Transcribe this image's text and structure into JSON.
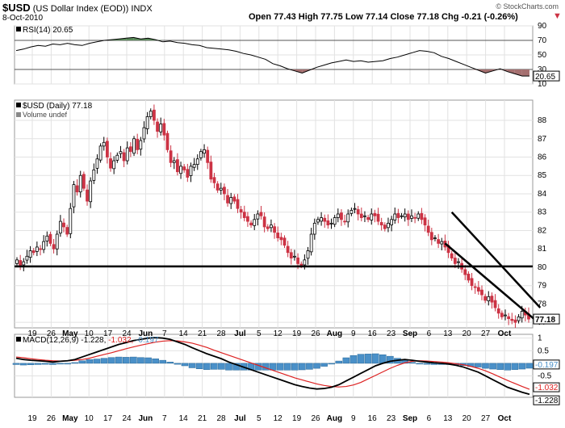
{
  "header": {
    "symbol": "$USD",
    "name": "(US Dollar Index (EOD))",
    "exchange": "INDX",
    "date": "8-Oct-2010",
    "watermark": "© StockCharts.com",
    "ohlc_text": "Open 77.43  High 77.75  Low 77.14  Close 77.18  Chg -0.21 (-0.26%)"
  },
  "colors": {
    "up": "#ffffff",
    "down": "#cc3344",
    "rsi_up": "#5a8a5a",
    "rsi_down": "#a57070",
    "macd": "#000000",
    "signal": "#dd2222",
    "hist": "#4a90c8",
    "trendline": "#000000"
  },
  "chart_data": [
    {
      "type": "line",
      "panel": "rsi",
      "legend": "RSI(14) 20.65",
      "ylim": [
        10,
        90
      ],
      "yticks": [
        10,
        30,
        50,
        70,
        90
      ],
      "ref_lines": [
        30,
        70
      ],
      "last_label": "20.65",
      "x_labels": [
        "19",
        "26",
        "May",
        "10",
        "17",
        "24",
        "Jun",
        "7",
        "14",
        "21",
        "28",
        "Jul",
        "5",
        "12",
        "19",
        "26",
        "Aug",
        "9",
        "16",
        "23",
        "Sep",
        "6",
        "13",
        "20",
        "27",
        "Oct"
      ],
      "values": [
        56,
        58,
        61,
        63,
        62,
        65,
        64,
        66,
        64,
        63,
        66,
        68,
        70,
        71,
        72,
        73,
        74,
        72,
        73,
        71,
        68,
        69,
        67,
        66,
        64,
        63,
        60,
        59,
        58,
        57,
        55,
        52,
        50,
        47,
        44,
        38,
        35,
        31,
        28,
        25,
        29,
        33,
        36,
        39,
        41,
        43,
        41,
        42,
        40,
        41,
        42,
        45,
        47,
        50,
        53,
        56,
        55,
        53,
        48,
        45,
        41,
        37,
        33,
        29,
        25,
        28,
        31,
        27,
        24,
        21,
        21
      ]
    },
    {
      "type": "candlestick",
      "panel": "price",
      "legend": "$USD (Daily) 77.18",
      "volume_note": "Volume undef",
      "ylim": [
        76.7,
        89.1
      ],
      "yticks": [
        77,
        78,
        79,
        80,
        81,
        82,
        83,
        84,
        85,
        86,
        87,
        88
      ],
      "last_price_label": "77.18",
      "x_labels": [
        "19",
        "26",
        "May",
        "10",
        "17",
        "24",
        "Jun",
        "7",
        "14",
        "21",
        "28",
        "Jul",
        "5",
        "12",
        "19",
        "26",
        "Aug",
        "9",
        "16",
        "23",
        "Sep",
        "6",
        "13",
        "20",
        "27",
        "Oct"
      ],
      "horizontal_line": 80.05,
      "trend_channel": {
        "upper": [
          [
            130,
            83.0
          ],
          [
            155,
            77.8
          ]
        ],
        "lower": [
          [
            128,
            81.3
          ],
          [
            155,
            76.9
          ]
        ]
      },
      "closes": [
        80.4,
        80.1,
        80.3,
        80.6,
        80.9,
        80.8,
        81.1,
        81.0,
        81.4,
        81.7,
        81.3,
        81.0,
        81.8,
        82.5,
        82.2,
        81.8,
        83.2,
        84.5,
        84.1,
        85.0,
        84.3,
        83.6,
        84.7,
        85.3,
        85.9,
        86.6,
        86.8,
        86.0,
        85.4,
        85.8,
        86.1,
        86.3,
        85.8,
        86.5,
        86.3,
        87.0,
        86.4,
        86.9,
        87.6,
        88.2,
        88.5,
        88.0,
        87.4,
        87.8,
        87.2,
        86.4,
        85.7,
        85.8,
        85.2,
        85.5,
        85.3,
        84.9,
        85.5,
        85.6,
        85.9,
        86.3,
        86.4,
        85.7,
        84.8,
        84.6,
        84.2,
        84.3,
        84.0,
        83.5,
        83.8,
        83.6,
        83.2,
        83.0,
        82.7,
        82.5,
        82.3,
        82.6,
        82.9,
        82.8,
        82.2,
        82.1,
        82.3,
        81.9,
        81.6,
        81.5,
        81.2,
        80.8,
        80.5,
        80.6,
        80.2,
        80.1,
        80.4,
        80.9,
        81.8,
        82.4,
        82.6,
        82.7,
        82.5,
        82.3,
        82.4,
        82.7,
        82.9,
        82.6,
        82.5,
        82.9,
        83.1,
        83.2,
        82.9,
        82.7,
        82.8,
        82.6,
        82.9,
        82.8,
        82.5,
        82.3,
        82.1,
        82.4,
        82.6,
        82.9,
        82.7,
        82.8,
        82.9,
        82.6,
        82.8,
        82.7,
        82.9,
        82.6,
        82.3,
        81.9,
        81.5,
        81.6,
        81.3,
        81.4,
        81.1,
        80.8,
        80.5,
        80.2,
        80.3,
        79.9,
        79.6,
        79.3,
        79.0,
        78.9,
        78.7,
        78.5,
        78.2,
        78.4,
        78.1,
        77.8,
        77.5,
        77.3,
        77.4,
        77.2,
        77.1,
        77.0,
        77.3,
        77.6,
        77.4,
        77.18
      ]
    },
    {
      "type": "line",
      "panel": "macd",
      "legend_prefix": "MACD(12,26,9)",
      "legend_macd": "-1.228",
      "legend_signal": "-1.032",
      "legend_hist": "-0.197",
      "ylim": [
        -1.35,
        1.15
      ],
      "yticks": [
        1.0,
        0.5,
        0.0,
        -0.5
      ],
      "last_labels": [
        "-1.032",
        "-1.228",
        "-0.197"
      ],
      "x_labels": [
        "19",
        "26",
        "May",
        "10",
        "17",
        "24",
        "Jun",
        "7",
        "14",
        "21",
        "28",
        "Jul",
        "5",
        "12",
        "19",
        "26",
        "Aug",
        "9",
        "16",
        "23",
        "Sep",
        "6",
        "13",
        "20",
        "27",
        "Oct"
      ],
      "macd": [
        0.2,
        0.15,
        0.12,
        0.1,
        0.08,
        0.05,
        0.08,
        0.1,
        0.15,
        0.25,
        0.35,
        0.45,
        0.55,
        0.65,
        0.75,
        0.82,
        0.9,
        0.95,
        1.0,
        1.02,
        1.0,
        0.95,
        0.85,
        0.75,
        0.62,
        0.5,
        0.38,
        0.28,
        0.18,
        0.05,
        -0.05,
        -0.15,
        -0.25,
        -0.35,
        -0.45,
        -0.55,
        -0.65,
        -0.75,
        -0.85,
        -0.92,
        -0.98,
        -1.02,
        -1.0,
        -0.95,
        -0.85,
        -0.7,
        -0.55,
        -0.4,
        -0.25,
        -0.1,
        0.0,
        0.08,
        0.12,
        0.15,
        0.12,
        0.08,
        0.05,
        0.02,
        0.0,
        -0.03,
        -0.08,
        -0.15,
        -0.25,
        -0.35,
        -0.5,
        -0.65,
        -0.8,
        -0.95,
        -1.05,
        -1.15,
        -1.228
      ],
      "signal": [
        0.25,
        0.22,
        0.18,
        0.15,
        0.12,
        0.1,
        0.09,
        0.1,
        0.12,
        0.15,
        0.2,
        0.28,
        0.35,
        0.42,
        0.5,
        0.58,
        0.65,
        0.72,
        0.78,
        0.84,
        0.88,
        0.9,
        0.89,
        0.85,
        0.8,
        0.72,
        0.63,
        0.52,
        0.42,
        0.32,
        0.22,
        0.12,
        0.02,
        -0.08,
        -0.18,
        -0.28,
        -0.38,
        -0.48,
        -0.58,
        -0.66,
        -0.74,
        -0.82,
        -0.88,
        -0.92,
        -0.94,
        -0.92,
        -0.86,
        -0.76,
        -0.62,
        -0.48,
        -0.34,
        -0.2,
        -0.08,
        0.02,
        0.08,
        0.1,
        0.09,
        0.07,
        0.05,
        0.02,
        -0.02,
        -0.06,
        -0.12,
        -0.2,
        -0.3,
        -0.42,
        -0.55,
        -0.68,
        -0.8,
        -0.92,
        -1.032
      ]
    }
  ]
}
